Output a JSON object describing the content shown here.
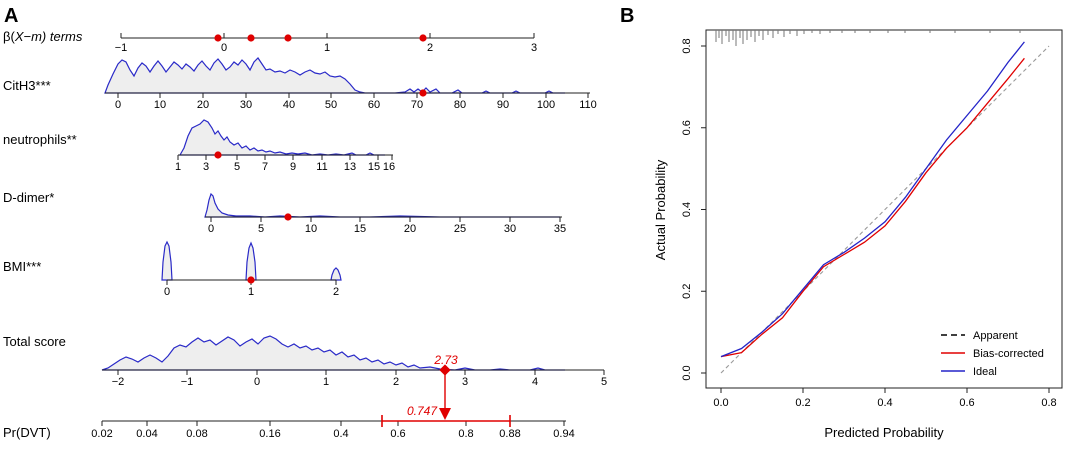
{
  "panel_a": {
    "letter": "A",
    "row_labels": {
      "beta_prefix": "β(",
      "beta_italic": "X−m",
      "beta_suffix": ") terms",
      "cith3": "CitH3***",
      "neutrophils": "neutrophils**",
      "ddimer": "D-dimer*",
      "bmi": "BMI***",
      "total": "Total score",
      "prdvt": "Pr(DVT)"
    },
    "beta_ticks": [
      "−1",
      "0",
      "1",
      "2",
      "3"
    ],
    "cith3_ticks": [
      "0",
      "10",
      "20",
      "30",
      "40",
      "50",
      "60",
      "70",
      "80",
      "90",
      "100",
      "110"
    ],
    "neut_ticks": [
      "1",
      "3",
      "5",
      "7",
      "9",
      "11",
      "13",
      "15",
      "16"
    ],
    "ddimer_ticks": [
      "0",
      "5",
      "10",
      "15",
      "20",
      "25",
      "30",
      "35"
    ],
    "bmi_ticks": [
      "0",
      "1",
      "2"
    ],
    "total_ticks": [
      "−2",
      "−1",
      "0",
      "1",
      "2",
      "3",
      "4",
      "5"
    ],
    "prdvt_ticks": [
      "0.02",
      "0.04",
      "0.08",
      "0.16",
      "0.4",
      "0.6",
      "0.8",
      "0.88",
      "0.94"
    ],
    "total_score_value": "2.73",
    "prob_value": "0.747",
    "accent_color": "#e00000",
    "density_color": "#2a2ac8",
    "fill_color": "#eeeeee"
  },
  "chart_data": {
    "type": "line",
    "panel_letter": "B",
    "title": "",
    "xlabel": "Predicted Probability",
    "ylabel": "Actual Probability",
    "xlim": [
      0.0,
      0.8
    ],
    "ylim": [
      0.0,
      0.8
    ],
    "x_ticks": [
      "0.0",
      "0.2",
      "0.4",
      "0.6",
      "0.8"
    ],
    "y_ticks": [
      "0.0",
      "0.2",
      "0.4",
      "0.6",
      "0.8"
    ],
    "legend_position": "bottom-right",
    "series": [
      {
        "name": "Apparent",
        "style": "dashed",
        "color": "#000000",
        "x": [
          0.0,
          0.8
        ],
        "y": [
          0.0,
          0.8
        ]
      },
      {
        "name": "Bias-corrected",
        "style": "solid",
        "color": "#e00000",
        "x": [
          0.0,
          0.05,
          0.1,
          0.15,
          0.2,
          0.25,
          0.3,
          0.35,
          0.4,
          0.45,
          0.5,
          0.55,
          0.6,
          0.65,
          0.7,
          0.74
        ],
        "y": [
          0.04,
          0.05,
          0.095,
          0.135,
          0.2,
          0.26,
          0.29,
          0.32,
          0.36,
          0.42,
          0.49,
          0.55,
          0.6,
          0.66,
          0.72,
          0.77
        ]
      },
      {
        "name": "Ideal",
        "style": "solid",
        "color": "#2424c8",
        "x": [
          0.0,
          0.05,
          0.1,
          0.15,
          0.2,
          0.25,
          0.3,
          0.35,
          0.4,
          0.45,
          0.5,
          0.55,
          0.6,
          0.65,
          0.7,
          0.74
        ],
        "y": [
          0.04,
          0.06,
          0.1,
          0.145,
          0.205,
          0.265,
          0.295,
          0.33,
          0.37,
          0.43,
          0.5,
          0.57,
          0.63,
          0.69,
          0.76,
          0.81
        ]
      }
    ]
  }
}
